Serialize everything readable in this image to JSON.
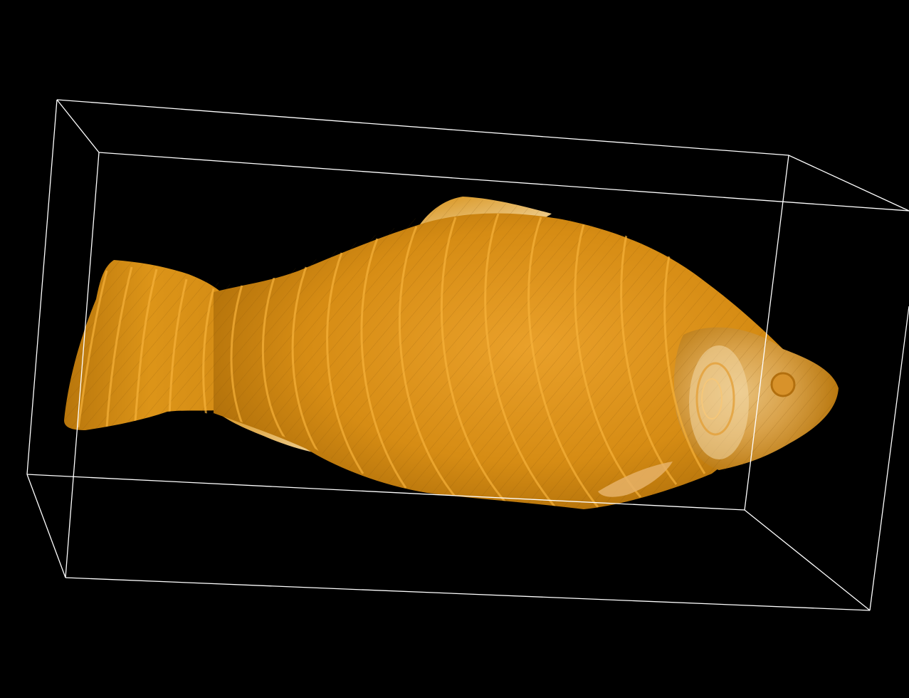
{
  "scene": {
    "background_color": "#000000",
    "bounding_box_color": "#ffffff",
    "volume_colors": {
      "base": "#d98e12",
      "light": "#f3a52a",
      "highlight": "#f8dca6",
      "shadow": "#7a4a05"
    },
    "subject": "fish-volume-rendering"
  }
}
